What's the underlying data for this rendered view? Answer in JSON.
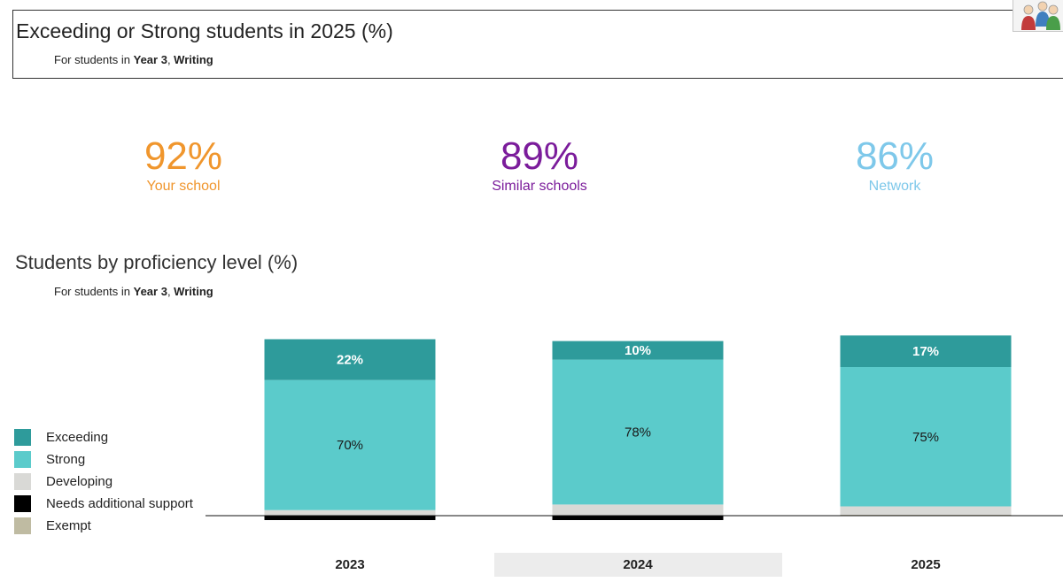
{
  "header": {
    "title": "Exceeding or Strong students in 2025 (%)",
    "subtitle_prefix": "For students in ",
    "subtitle_year": "Year 3",
    "subtitle_sep": ", ",
    "subtitle_subject": "Writing",
    "icon": "people-group-icon"
  },
  "kpis": [
    {
      "value": "92%",
      "label": "Your school",
      "color": "#f0962d"
    },
    {
      "value": "89%",
      "label": "Similar schools",
      "color": "#7b1c9b"
    },
    {
      "value": "86%",
      "label": "Network",
      "color": "#7ec8ea"
    }
  ],
  "section": {
    "title": "Students by proficiency level (%)",
    "subtitle_prefix": "For students in ",
    "subtitle_year": "Year 3",
    "subtitle_sep": ", ",
    "subtitle_subject": "Writing"
  },
  "legend": [
    {
      "label": "Exceeding",
      "color": "#2e9b9b"
    },
    {
      "label": "Strong",
      "color": "#5bcbcb"
    },
    {
      "label": "Developing",
      "color": "#d9d9d6"
    },
    {
      "label": "Needs additional support",
      "color": "#000000"
    },
    {
      "label": "Exempt",
      "color": "#bfbba2"
    }
  ],
  "chart_data": {
    "type": "bar",
    "stacked": true,
    "categories": [
      "2023",
      "2024",
      "2025"
    ],
    "highlighted_category": "2024",
    "series": [
      {
        "name": "Needs additional support",
        "color": "#000000",
        "values": [
          1,
          1,
          0
        ]
      },
      {
        "name": "Exempt",
        "color": "#bfbba2",
        "values": [
          0,
          0,
          0.5
        ]
      },
      {
        "name": "Developing",
        "color": "#d9d9d6",
        "values": [
          3,
          6,
          4.5
        ]
      },
      {
        "name": "Strong",
        "color": "#5bcbcb",
        "values": [
          70,
          78,
          75
        ],
        "labels": [
          "70%",
          "78%",
          "75%"
        ],
        "label_color": "#1a1a1a"
      },
      {
        "name": "Exceeding",
        "color": "#2e9b9b",
        "values": [
          22,
          10,
          17
        ],
        "labels": [
          "22%",
          "10%",
          "17%"
        ],
        "label_color": "#ffffff"
      }
    ],
    "ylim": [
      0,
      100
    ],
    "grid": false,
    "legend_position": "left"
  }
}
